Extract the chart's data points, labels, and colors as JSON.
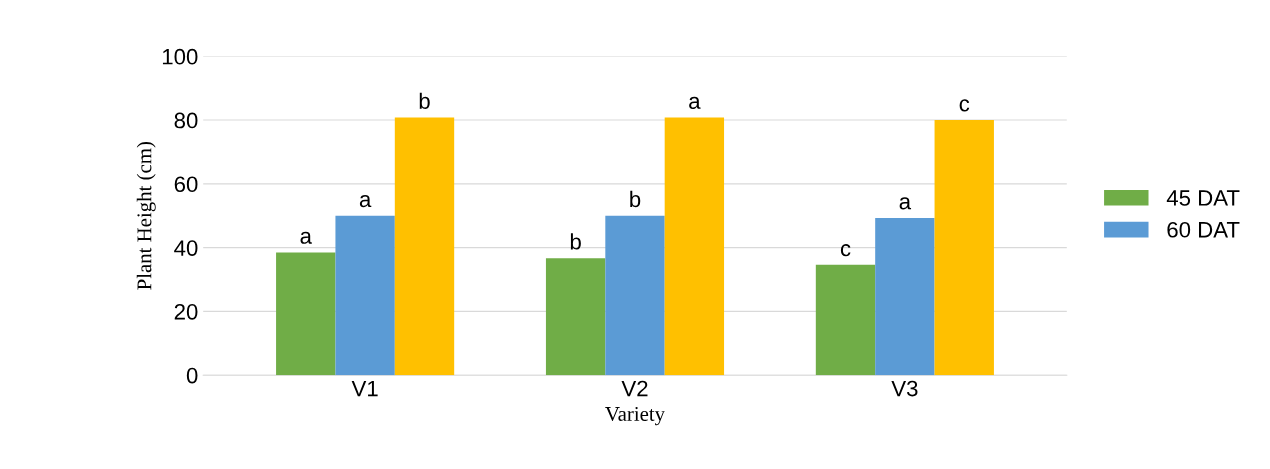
{
  "chart_data": {
    "type": "bar",
    "xlabel": "Variety",
    "ylabel": "Plant Height (cm)",
    "categories": [
      "V1",
      "V2",
      "V3"
    ],
    "series": [
      {
        "name": "45 DAT",
        "color": "#70ad47",
        "values": [
          38.5,
          36.7,
          34.6
        ],
        "value_labels": [
          "a",
          "b",
          "c"
        ]
      },
      {
        "name": "60 DAT",
        "color": "#5b9bd5",
        "values": [
          50,
          50,
          49.3
        ],
        "value_labels": [
          "a",
          "b",
          "a"
        ]
      },
      {
        "color": "#ffc000",
        "values": [
          80.8,
          80.8,
          80
        ],
        "value_labels": [
          "b",
          "a",
          "c"
        ]
      }
    ],
    "ylim": [
      0,
      100
    ],
    "yticks": [
      0,
      20,
      40,
      60,
      80,
      100
    ],
    "grid": "y",
    "legend": "right"
  }
}
